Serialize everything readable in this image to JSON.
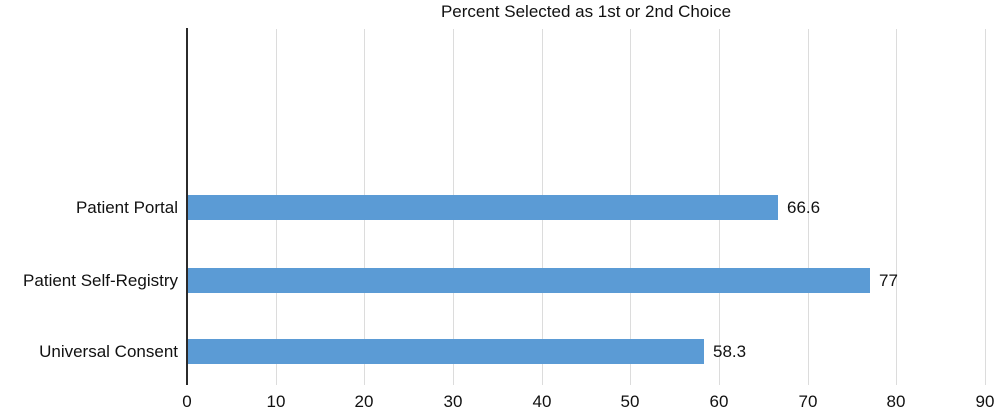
{
  "chart_data": {
    "type": "bar",
    "orientation": "horizontal",
    "title": "Percent Selected as 1st or 2nd Choice",
    "categories": [
      "Patient Portal",
      "Patient Self-Registry",
      "Universal Consent"
    ],
    "values": [
      66.6,
      77,
      58.3
    ],
    "value_labels": [
      "66.6",
      "77",
      "58.3"
    ],
    "xlabel": "",
    "ylabel": "",
    "xlim": [
      0,
      90
    ],
    "xticks": [
      0,
      10,
      20,
      30,
      40,
      50,
      60,
      70,
      80,
      90
    ],
    "grid": "vertical",
    "legend_position": "none",
    "bar_color": "#5B9BD5",
    "gridline_color": "#DCDCDC",
    "axis_line_color": "#2B2B2B",
    "text_color": "#111111"
  }
}
